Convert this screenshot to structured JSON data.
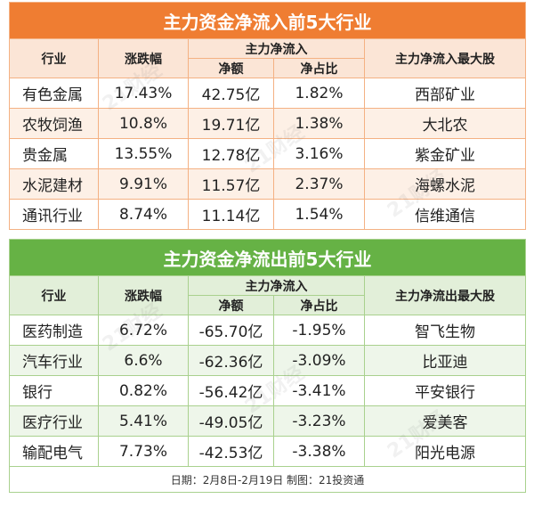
{
  "inflow": {
    "title": "主力资金净流入前5大行业",
    "headers": {
      "industry": "行业",
      "change": "涨跌幅",
      "group": "主力净流入",
      "net": "净额",
      "ratio": "净占比",
      "stock": "主力净流入最大股"
    },
    "rows": [
      {
        "industry": "有色金属",
        "change": "17.43%",
        "net": "42.75亿",
        "ratio": "1.82%",
        "stock": "西部矿业"
      },
      {
        "industry": "农牧饲渔",
        "change": "10.8%",
        "net": "19.71亿",
        "ratio": "1.38%",
        "stock": "大北农"
      },
      {
        "industry": "贵金属",
        "change": "13.55%",
        "net": "12.78亿",
        "ratio": "3.16%",
        "stock": "紫金矿业"
      },
      {
        "industry": "水泥建材",
        "change": "9.91%",
        "net": "11.57亿",
        "ratio": "2.37%",
        "stock": "海螺水泥"
      },
      {
        "industry": "通讯行业",
        "change": "8.74%",
        "net": "11.14亿",
        "ratio": "1.54%",
        "stock": "信维通信"
      }
    ]
  },
  "outflow": {
    "title": "主力资金净流出前5大行业",
    "headers": {
      "industry": "行业",
      "change": "涨跌幅",
      "group": "主力净流入",
      "net": "净额",
      "ratio": "净占比",
      "stock": "主力净流出最大股"
    },
    "rows": [
      {
        "industry": "医药制造",
        "change": "6.72%",
        "net": "-65.70亿",
        "ratio": "-1.95%",
        "stock": "智飞生物"
      },
      {
        "industry": "汽车行业",
        "change": "6.6%",
        "net": "-62.36亿",
        "ratio": "-3.09%",
        "stock": "比亚迪"
      },
      {
        "industry": "银行",
        "change": "0.82%",
        "net": "-56.42亿",
        "ratio": "-3.41%",
        "stock": "平安银行"
      },
      {
        "industry": "医疗行业",
        "change": "5.41%",
        "net": "-49.05亿",
        "ratio": "-3.23%",
        "stock": "爱美客"
      },
      {
        "industry": "输配电气",
        "change": "7.73%",
        "net": "-42.53亿",
        "ratio": "-3.38%",
        "stock": "阳光电源"
      }
    ]
  },
  "footer": "日期：2月8日-2月19日  制图：21投资通",
  "watermark": "21财经",
  "colors": {
    "inflow_accent": "#ef7d32",
    "outflow_accent": "#66b245"
  }
}
